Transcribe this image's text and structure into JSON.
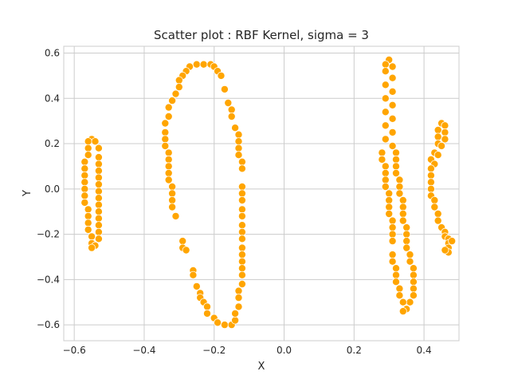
{
  "chart_data": {
    "type": "scatter",
    "title": "Scatter plot : RBF Kernel, sigma = 3",
    "xlabel": "X",
    "ylabel": "Y",
    "xlim": [
      -0.63,
      0.5
    ],
    "ylim": [
      -0.67,
      0.63
    ],
    "xticks": [
      -0.6,
      -0.4,
      -0.2,
      0.0,
      0.2,
      0.4
    ],
    "xtick_labels": [
      "−0.6",
      "−0.4",
      "−0.2",
      "0.0",
      "0.2",
      "0.4"
    ],
    "yticks": [
      -0.6,
      -0.4,
      -0.2,
      0.0,
      0.2,
      0.4,
      0.6
    ],
    "ytick_labels": [
      "−0.6",
      "−0.4",
      "−0.2",
      "0.0",
      "0.2",
      "0.4",
      "0.6"
    ],
    "grid": true,
    "marker_color": "#ffa500",
    "marker_edge_color": "#ffffff",
    "points": [
      [
        -0.55,
        0.22
      ],
      [
        -0.56,
        0.21
      ],
      [
        -0.54,
        0.21
      ],
      [
        -0.56,
        0.18
      ],
      [
        -0.53,
        0.18
      ],
      [
        -0.56,
        0.15
      ],
      [
        -0.53,
        0.14
      ],
      [
        -0.57,
        0.12
      ],
      [
        -0.53,
        0.11
      ],
      [
        -0.57,
        0.09
      ],
      [
        -0.53,
        0.08
      ],
      [
        -0.57,
        0.06
      ],
      [
        -0.53,
        0.05
      ],
      [
        -0.57,
        0.03
      ],
      [
        -0.53,
        0.02
      ],
      [
        -0.57,
        0.0
      ],
      [
        -0.53,
        -0.01
      ],
      [
        -0.57,
        -0.03
      ],
      [
        -0.53,
        -0.04
      ],
      [
        -0.57,
        -0.06
      ],
      [
        -0.53,
        -0.07
      ],
      [
        -0.56,
        -0.09
      ],
      [
        -0.53,
        -0.1
      ],
      [
        -0.56,
        -0.12
      ],
      [
        -0.53,
        -0.13
      ],
      [
        -0.56,
        -0.15
      ],
      [
        -0.53,
        -0.16
      ],
      [
        -0.56,
        -0.18
      ],
      [
        -0.53,
        -0.19
      ],
      [
        -0.55,
        -0.21
      ],
      [
        -0.53,
        -0.22
      ],
      [
        -0.55,
        -0.24
      ],
      [
        -0.54,
        -0.25
      ],
      [
        -0.55,
        -0.26
      ],
      [
        -0.25,
        0.55
      ],
      [
        -0.23,
        0.55
      ],
      [
        -0.21,
        0.55
      ],
      [
        -0.27,
        0.54
      ],
      [
        -0.2,
        0.54
      ],
      [
        -0.28,
        0.52
      ],
      [
        -0.19,
        0.52
      ],
      [
        -0.29,
        0.5
      ],
      [
        -0.18,
        0.5
      ],
      [
        -0.3,
        0.48
      ],
      [
        -0.3,
        0.45
      ],
      [
        -0.31,
        0.42
      ],
      [
        -0.17,
        0.44
      ],
      [
        -0.16,
        0.38
      ],
      [
        -0.32,
        0.39
      ],
      [
        -0.15,
        0.35
      ],
      [
        -0.33,
        0.36
      ],
      [
        -0.33,
        0.32
      ],
      [
        -0.15,
        0.32
      ],
      [
        -0.34,
        0.29
      ],
      [
        -0.14,
        0.27
      ],
      [
        -0.34,
        0.25
      ],
      [
        -0.13,
        0.24
      ],
      [
        -0.34,
        0.22
      ],
      [
        -0.13,
        0.21
      ],
      [
        -0.34,
        0.19
      ],
      [
        -0.13,
        0.18
      ],
      [
        -0.33,
        0.16
      ],
      [
        -0.13,
        0.15
      ],
      [
        -0.33,
        0.13
      ],
      [
        -0.12,
        0.12
      ],
      [
        -0.33,
        0.1
      ],
      [
        -0.12,
        0.09
      ],
      [
        -0.33,
        0.07
      ],
      [
        -0.33,
        0.04
      ],
      [
        -0.32,
        0.01
      ],
      [
        -0.12,
        0.01
      ],
      [
        -0.32,
        -0.02
      ],
      [
        -0.12,
        -0.02
      ],
      [
        -0.32,
        -0.05
      ],
      [
        -0.12,
        -0.05
      ],
      [
        -0.32,
        -0.08
      ],
      [
        -0.12,
        -0.09
      ],
      [
        -0.31,
        -0.12
      ],
      [
        -0.12,
        -0.12
      ],
      [
        -0.12,
        -0.16
      ],
      [
        -0.12,
        -0.19
      ],
      [
        -0.12,
        -0.22
      ],
      [
        -0.12,
        -0.26
      ],
      [
        -0.12,
        -0.29
      ],
      [
        -0.12,
        -0.32
      ],
      [
        -0.12,
        -0.35
      ],
      [
        -0.12,
        -0.38
      ],
      [
        -0.12,
        -0.42
      ],
      [
        -0.13,
        -0.45
      ],
      [
        -0.13,
        -0.48
      ],
      [
        -0.29,
        -0.23
      ],
      [
        -0.29,
        -0.26
      ],
      [
        -0.28,
        -0.27
      ],
      [
        -0.26,
        -0.36
      ],
      [
        -0.26,
        -0.38
      ],
      [
        -0.25,
        -0.43
      ],
      [
        -0.24,
        -0.46
      ],
      [
        -0.24,
        -0.48
      ],
      [
        -0.23,
        -0.5
      ],
      [
        -0.22,
        -0.52
      ],
      [
        -0.22,
        -0.55
      ],
      [
        -0.2,
        -0.57
      ],
      [
        -0.19,
        -0.59
      ],
      [
        -0.17,
        -0.6
      ],
      [
        -0.15,
        -0.6
      ],
      [
        -0.14,
        -0.58
      ],
      [
        -0.14,
        -0.55
      ],
      [
        -0.13,
        -0.52
      ],
      [
        0.3,
        0.57
      ],
      [
        0.29,
        0.55
      ],
      [
        0.31,
        0.54
      ],
      [
        0.29,
        0.52
      ],
      [
        0.31,
        0.49
      ],
      [
        0.29,
        0.46
      ],
      [
        0.31,
        0.43
      ],
      [
        0.29,
        0.4
      ],
      [
        0.31,
        0.37
      ],
      [
        0.29,
        0.34
      ],
      [
        0.31,
        0.31
      ],
      [
        0.29,
        0.28
      ],
      [
        0.31,
        0.25
      ],
      [
        0.29,
        0.22
      ],
      [
        0.31,
        0.19
      ],
      [
        0.28,
        0.16
      ],
      [
        0.32,
        0.16
      ],
      [
        0.28,
        0.13
      ],
      [
        0.32,
        0.13
      ],
      [
        0.29,
        0.1
      ],
      [
        0.32,
        0.1
      ],
      [
        0.29,
        0.07
      ],
      [
        0.32,
        0.07
      ],
      [
        0.29,
        0.04
      ],
      [
        0.33,
        0.04
      ],
      [
        0.29,
        0.01
      ],
      [
        0.33,
        0.01
      ],
      [
        0.3,
        -0.02
      ],
      [
        0.33,
        -0.02
      ],
      [
        0.3,
        -0.05
      ],
      [
        0.34,
        -0.05
      ],
      [
        0.3,
        -0.08
      ],
      [
        0.34,
        -0.08
      ],
      [
        0.3,
        -0.11
      ],
      [
        0.34,
        -0.11
      ],
      [
        0.31,
        -0.14
      ],
      [
        0.34,
        -0.14
      ],
      [
        0.31,
        -0.17
      ],
      [
        0.35,
        -0.17
      ],
      [
        0.31,
        -0.2
      ],
      [
        0.35,
        -0.2
      ],
      [
        0.31,
        -0.23
      ],
      [
        0.35,
        -0.23
      ],
      [
        0.35,
        -0.26
      ],
      [
        0.36,
        -0.29
      ],
      [
        0.31,
        -0.29
      ],
      [
        0.36,
        -0.32
      ],
      [
        0.31,
        -0.32
      ],
      [
        0.37,
        -0.35
      ],
      [
        0.32,
        -0.35
      ],
      [
        0.37,
        -0.38
      ],
      [
        0.32,
        -0.38
      ],
      [
        0.37,
        -0.41
      ],
      [
        0.32,
        -0.41
      ],
      [
        0.37,
        -0.44
      ],
      [
        0.33,
        -0.44
      ],
      [
        0.37,
        -0.47
      ],
      [
        0.33,
        -0.47
      ],
      [
        0.36,
        -0.5
      ],
      [
        0.34,
        -0.5
      ],
      [
        0.35,
        -0.53
      ],
      [
        0.34,
        -0.54
      ],
      [
        0.45,
        0.29
      ],
      [
        0.46,
        0.28
      ],
      [
        0.44,
        0.26
      ],
      [
        0.46,
        0.25
      ],
      [
        0.44,
        0.23
      ],
      [
        0.46,
        0.22
      ],
      [
        0.44,
        0.2
      ],
      [
        0.45,
        0.19
      ],
      [
        0.43,
        0.16
      ],
      [
        0.44,
        0.15
      ],
      [
        0.42,
        0.13
      ],
      [
        0.43,
        0.11
      ],
      [
        0.42,
        0.09
      ],
      [
        0.42,
        0.06
      ],
      [
        0.42,
        0.03
      ],
      [
        0.42,
        0.0
      ],
      [
        0.42,
        -0.03
      ],
      [
        0.43,
        -0.05
      ],
      [
        0.43,
        -0.08
      ],
      [
        0.44,
        -0.11
      ],
      [
        0.44,
        -0.14
      ],
      [
        0.45,
        -0.17
      ],
      [
        0.46,
        -0.19
      ],
      [
        0.46,
        -0.21
      ],
      [
        0.47,
        -0.22
      ],
      [
        0.47,
        -0.24
      ],
      [
        0.48,
        -0.23
      ],
      [
        0.47,
        -0.26
      ],
      [
        0.47,
        -0.28
      ],
      [
        0.46,
        -0.27
      ]
    ]
  }
}
